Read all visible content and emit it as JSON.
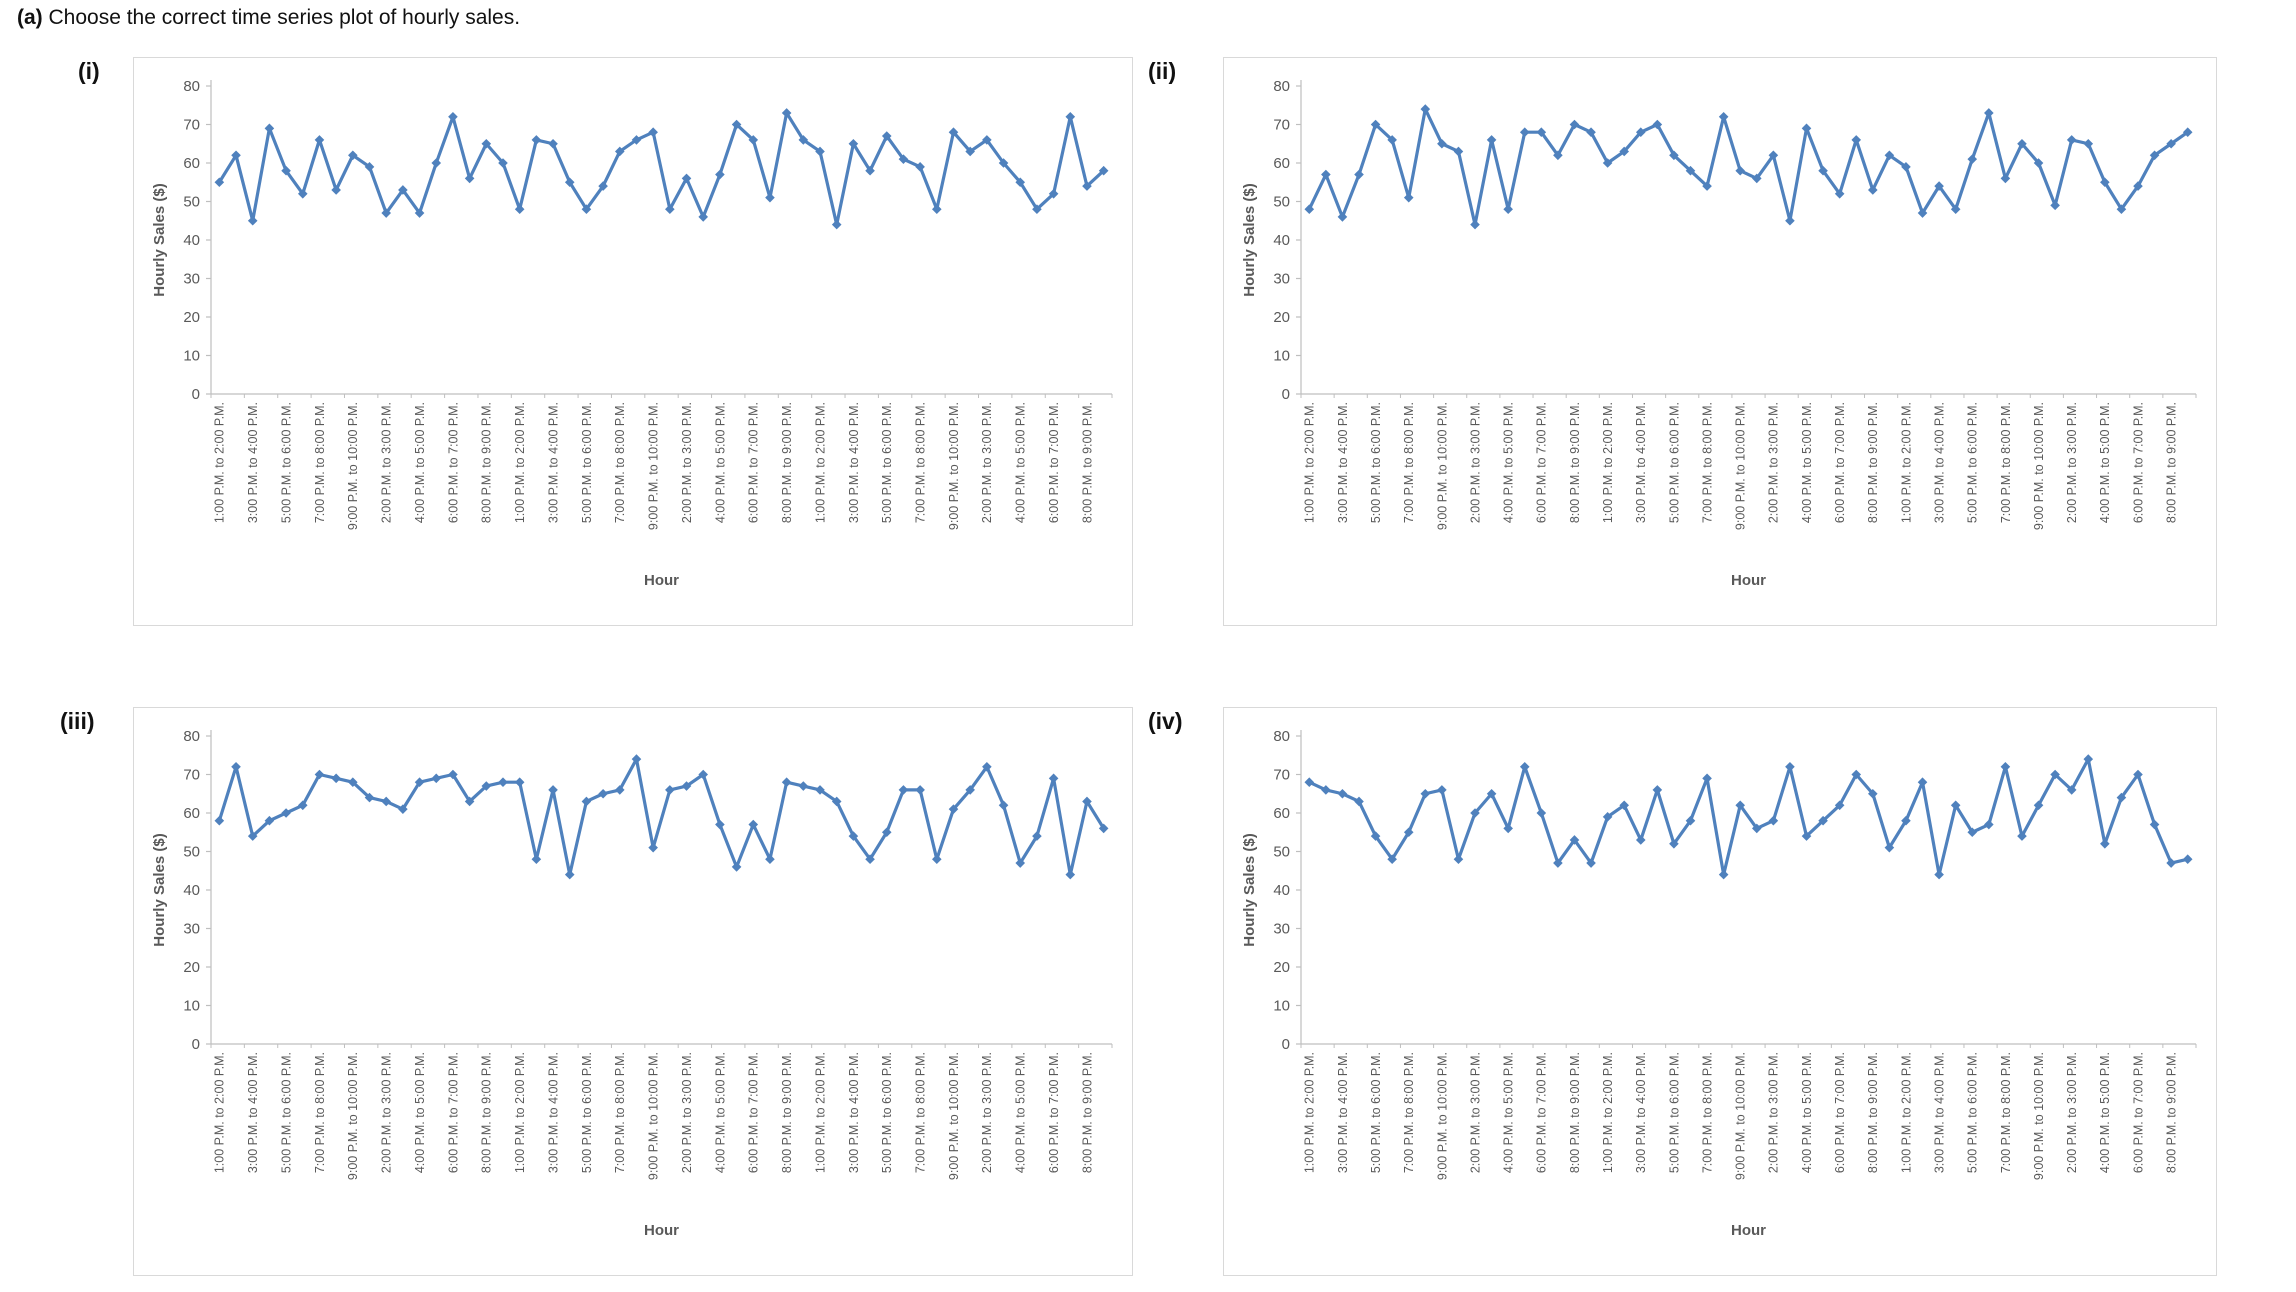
{
  "page": {
    "title_prefix": "(a)",
    "title_text": " Choose the correct time series plot of hourly sales."
  },
  "chart_data": {
    "type": "line",
    "xlabel": "Hour",
    "ylabel": "Hourly Sales ($)",
    "ylim": [
      0,
      80
    ],
    "yticks": [
      0,
      10,
      20,
      30,
      40,
      50,
      60,
      70,
      80
    ],
    "grid": "off",
    "legend": "none",
    "marker": "diamond",
    "line_color": "#4F81BD",
    "axis_color": "#BFBFBF",
    "text_color": "#595959",
    "panel_border_color": "#D9D9D9",
    "label_every": 2,
    "categories": [
      "1:00 P.M. to 2:00 P.M.",
      "2:00 P.M. to 3:00 P.M.",
      "3:00 P.M. to 4:00 P.M.",
      "4:00 P.M. to 5:00 P.M.",
      "5:00 P.M. to 6:00 P.M.",
      "6:00 P.M. to 7:00 P.M.",
      "7:00 P.M. to 8:00 P.M.",
      "8:00 P.M. to 9:00 P.M.",
      "9:00 P.M. to 10:00 P.M.",
      "1:00 P.M. to 2:00 P.M.",
      "2:00 P.M. to 3:00 P.M.",
      "3:00 P.M. to 4:00 P.M.",
      "4:00 P.M. to 5:00 P.M.",
      "5:00 P.M. to 6:00 P.M.",
      "6:00 P.M. to 7:00 P.M.",
      "7:00 P.M. to 8:00 P.M.",
      "8:00 P.M. to 9:00 P.M.",
      "9:00 P.M. to 10:00 P.M.",
      "1:00 P.M. to 2:00 P.M.",
      "2:00 P.M. to 3:00 P.M.",
      "3:00 P.M. to 4:00 P.M.",
      "4:00 P.M. to 5:00 P.M.",
      "5:00 P.M. to 6:00 P.M.",
      "6:00 P.M. to 7:00 P.M.",
      "7:00 P.M. to 8:00 P.M.",
      "8:00 P.M. to 9:00 P.M.",
      "9:00 P.M. to 10:00 P.M.",
      "1:00 P.M. to 2:00 P.M.",
      "2:00 P.M. to 3:00 P.M.",
      "3:00 P.M. to 4:00 P.M.",
      "4:00 P.M. to 5:00 P.M.",
      "5:00 P.M. to 6:00 P.M.",
      "6:00 P.M. to 7:00 P.M.",
      "7:00 P.M. to 8:00 P.M.",
      "8:00 P.M. to 9:00 P.M.",
      "9:00 P.M. to 10:00 P.M.",
      "1:00 P.M. to 2:00 P.M.",
      "2:00 P.M. to 3:00 P.M.",
      "3:00 P.M. to 4:00 P.M.",
      "4:00 P.M. to 5:00 P.M.",
      "5:00 P.M. to 6:00 P.M.",
      "6:00 P.M. to 7:00 P.M.",
      "7:00 P.M. to 8:00 P.M.",
      "8:00 P.M. to 9:00 P.M.",
      "9:00 P.M. to 10:00 P.M.",
      "1:00 P.M. to 2:00 P.M.",
      "2:00 P.M. to 3:00 P.M.",
      "3:00 P.M. to 4:00 P.M.",
      "4:00 P.M. to 5:00 P.M.",
      "5:00 P.M. to 6:00 P.M.",
      "6:00 P.M. to 7:00 P.M.",
      "7:00 P.M. to 8:00 P.M.",
      "8:00 P.M. to 9:00 P.M.",
      "9:00 P.M. to 10:00 P.M."
    ],
    "charts": [
      {
        "label": "(i)",
        "values": [
          55,
          62,
          45,
          69,
          58,
          52,
          66,
          53,
          62,
          59,
          47,
          53,
          47,
          60,
          72,
          56,
          65,
          60,
          48,
          66,
          65,
          55,
          48,
          54,
          63,
          66,
          68,
          48,
          56,
          46,
          57,
          70,
          66,
          51,
          73,
          66,
          63,
          44,
          65,
          58,
          67,
          61,
          59,
          48,
          68,
          63,
          66,
          60,
          55,
          48,
          52,
          72,
          54,
          58
        ]
      },
      {
        "label": "(ii)",
        "values": [
          48,
          57,
          46,
          57,
          70,
          66,
          51,
          74,
          65,
          63,
          44,
          66,
          48,
          68,
          68,
          62,
          70,
          68,
          60,
          63,
          68,
          70,
          62,
          58,
          54,
          72,
          58,
          56,
          62,
          45,
          69,
          58,
          52,
          66,
          53,
          62,
          59,
          47,
          54,
          48,
          61,
          73,
          56,
          65,
          60,
          49,
          66,
          65,
          55,
          48,
          54,
          62,
          65,
          68
        ]
      },
      {
        "label": "(iii)",
        "values": [
          58,
          72,
          54,
          58,
          60,
          62,
          70,
          69,
          68,
          64,
          63,
          61,
          68,
          69,
          70,
          63,
          67,
          68,
          68,
          48,
          66,
          44,
          63,
          65,
          66,
          74,
          51,
          66,
          67,
          70,
          57,
          46,
          57,
          48,
          68,
          67,
          66,
          63,
          54,
          48,
          55,
          66,
          66,
          48,
          61,
          66,
          72,
          62,
          47,
          54,
          69,
          44,
          63,
          56
        ]
      },
      {
        "label": "(iv)",
        "values": [
          68,
          66,
          65,
          63,
          54,
          48,
          55,
          65,
          66,
          48,
          60,
          65,
          56,
          72,
          60,
          47,
          53,
          47,
          59,
          62,
          53,
          66,
          52,
          58,
          69,
          44,
          62,
          56,
          58,
          72,
          54,
          58,
          62,
          70,
          65,
          51,
          58,
          68,
          44,
          62,
          55,
          57,
          72,
          54,
          62,
          70,
          66,
          74,
          52,
          64,
          70,
          57,
          47,
          48
        ]
      }
    ]
  }
}
